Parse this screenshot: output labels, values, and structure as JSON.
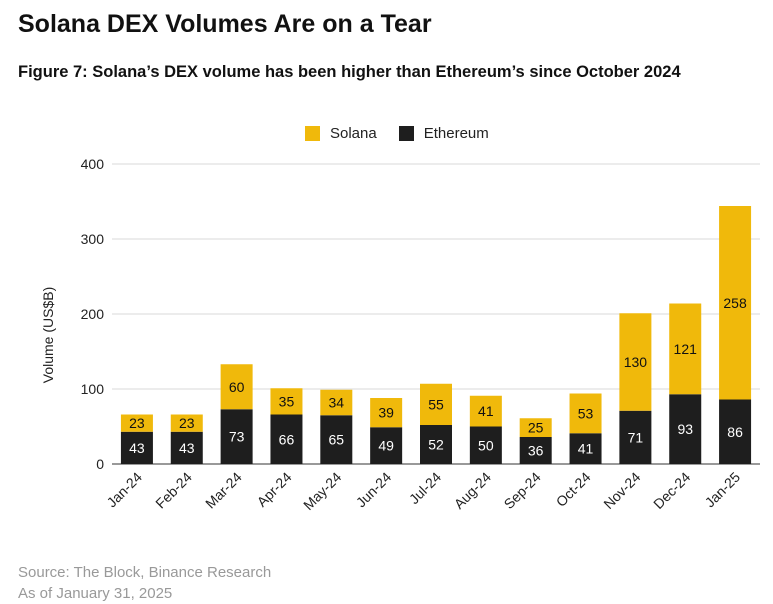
{
  "page": {
    "headline": "Solana DEX Volumes Are on a Tear",
    "figure_title": "Figure 7: Solana’s DEX volume has been higher than Ethereum’s since October 2024",
    "source": "Source: The Block, Binance Research",
    "as_of": "As of January 31, 2025"
  },
  "colors": {
    "solana": "#F0B90B",
    "ethereum": "#1E1E1E",
    "grid": "#D9D9D9"
  },
  "chart_data": {
    "type": "bar",
    "stacked": true,
    "categories": [
      "Jan-24",
      "Feb-24",
      "Mar-24",
      "Apr-24",
      "May-24",
      "Jun-24",
      "Jul-24",
      "Aug-24",
      "Sep-24",
      "Oct-24",
      "Nov-24",
      "Dec-24",
      "Jan-25"
    ],
    "series": [
      {
        "name": "Ethereum",
        "values": [
          43,
          43,
          73,
          66,
          65,
          49,
          52,
          50,
          36,
          41,
          71,
          93,
          86
        ]
      },
      {
        "name": "Solana",
        "values": [
          23,
          23,
          60,
          35,
          34,
          39,
          55,
          41,
          25,
          53,
          130,
          121,
          258
        ]
      }
    ],
    "ylabel": "Volume (US$B)",
    "xlabel": "",
    "ylim": [
      0,
      400
    ],
    "yticks": [
      "0",
      "100",
      "200",
      "300",
      "400"
    ],
    "legend": "top-center",
    "legend_order": [
      "Solana",
      "Ethereum"
    ],
    "grid": true
  }
}
